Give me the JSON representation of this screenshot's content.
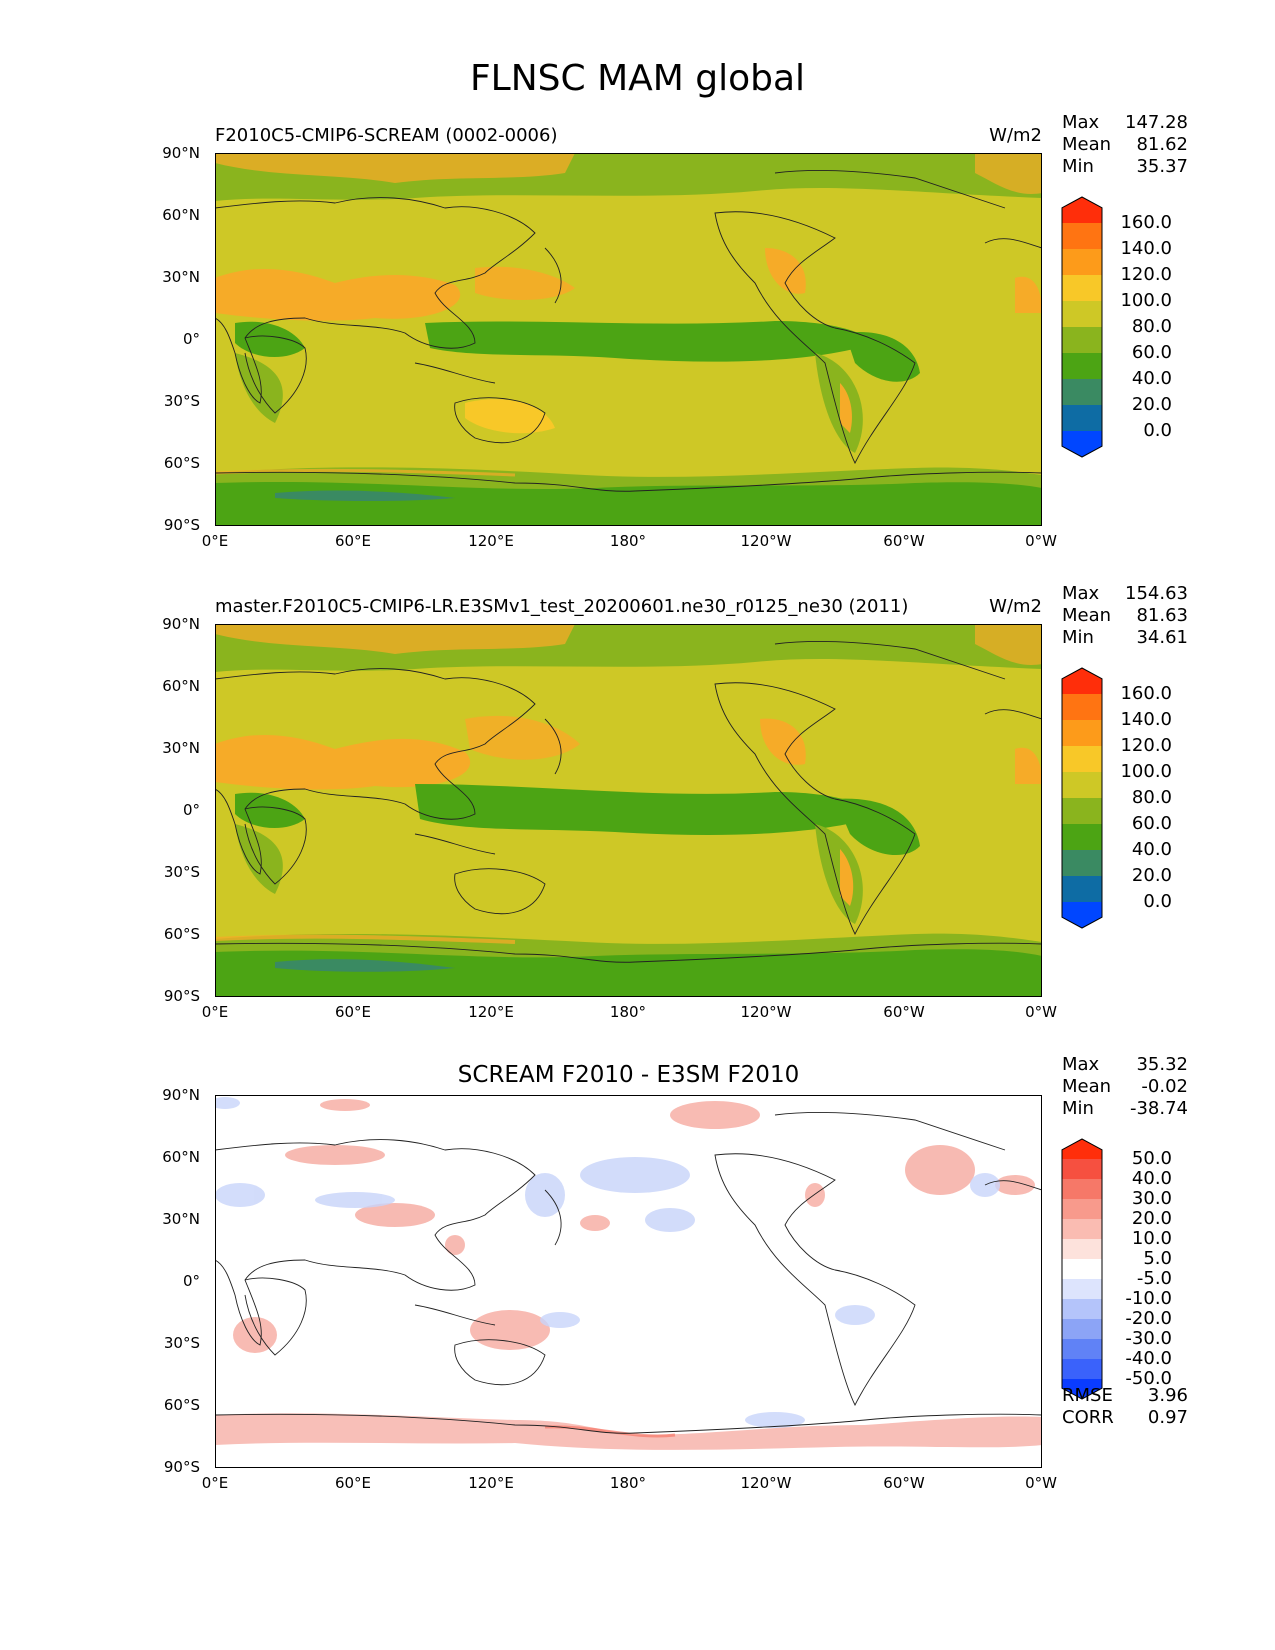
{
  "title": "FLNSC MAM global",
  "colors": {
    "land_green": "#8ab41e",
    "yellow": "#cec826",
    "dark_green": "#4ca414",
    "orange": "#f6ab28",
    "diff_red": "#f6aaa0",
    "diff_blue": "#c8d4fa"
  },
  "lat_labels": [
    "90°N",
    "60°N",
    "30°N",
    "0°",
    "30°S",
    "60°S",
    "90°S"
  ],
  "lon_labels": [
    "0°E",
    "60°E",
    "120°E",
    "180°",
    "120°W",
    "60°W",
    "0°W"
  ],
  "panels": [
    {
      "title": "F2010C5-CMIP6-SCREAM (0002-0006)",
      "units": "W/m2",
      "stats": [
        {
          "label": "Max",
          "value": "147.28"
        },
        {
          "label": "Mean",
          "value": "81.62"
        },
        {
          "label": "Min",
          "value": "35.37"
        }
      ],
      "colorbar_labels": [
        "160.0",
        "140.0",
        "120.0",
        "100.0",
        "80.0",
        "60.0",
        "40.0",
        "20.0",
        "0.0"
      ],
      "colorbar_colors": [
        "#ff2e0a",
        "#ff7412",
        "#fd9b1a",
        "#f8c828",
        "#cec826",
        "#8ab41e",
        "#4ca414",
        "#3a8a62",
        "#0e6ca4",
        "#0046ff"
      ]
    },
    {
      "title": "master.F2010C5-CMIP6-LR.E3SMv1_test_20200601.ne30_r0125_ne30 (2011)",
      "units": "W/m2",
      "stats": [
        {
          "label": "Max",
          "value": "154.63"
        },
        {
          "label": "Mean",
          "value": "81.63"
        },
        {
          "label": "Min",
          "value": "34.61"
        }
      ],
      "colorbar_labels": [
        "160.0",
        "140.0",
        "120.0",
        "100.0",
        "80.0",
        "60.0",
        "40.0",
        "20.0",
        "0.0"
      ],
      "colorbar_colors": [
        "#ff2e0a",
        "#ff7412",
        "#fd9b1a",
        "#f8c828",
        "#cec826",
        "#8ab41e",
        "#4ca414",
        "#3a8a62",
        "#0e6ca4",
        "#0046ff"
      ]
    },
    {
      "title": "SCREAM F2010 - E3SM F2010",
      "units": "",
      "stats": [
        {
          "label": "Max",
          "value": "35.32"
        },
        {
          "label": "Mean",
          "value": "-0.02"
        },
        {
          "label": "Min",
          "value": "-38.74"
        }
      ],
      "colorbar_labels": [
        "50.0",
        "40.0",
        "30.0",
        "20.0",
        "10.0",
        "5.0",
        "-5.0",
        "-10.0",
        "-20.0",
        "-30.0",
        "-40.0",
        "-50.0"
      ],
      "colorbar_colors": [
        "#ff2e0a",
        "#f65040",
        "#f67868",
        "#f89a8c",
        "#fabcb2",
        "#fde2dc",
        "#ffffff",
        "#dde4fd",
        "#b4c4fa",
        "#8ca4f6",
        "#6082f6",
        "#3a62fb",
        "#0a3cff"
      ],
      "footer": [
        {
          "label": "RMSE",
          "value": "3.96"
        },
        {
          "label": "CORR",
          "value": "0.97"
        }
      ]
    }
  ]
}
